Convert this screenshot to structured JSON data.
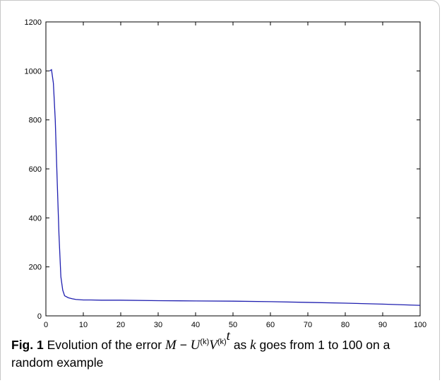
{
  "figure": {
    "label": "Fig. 1",
    "caption": {
      "prefix": "Evolution of the error ",
      "math_M": "M",
      "math_minus": " − ",
      "math_U": "U",
      "math_k1": "(k)",
      "math_V": "V",
      "math_k2": "(k)",
      "math_t": "t",
      "mid": " as ",
      "math_kvar": "k",
      "suffix": " goes from 1 to 100 on a random example"
    }
  },
  "colors": {
    "line": "#1f1fb0",
    "axis": "#000000",
    "frame": "#c7c7c7"
  },
  "chart_data": {
    "type": "line",
    "xlim": [
      0,
      100
    ],
    "ylim": [
      0,
      1200
    ],
    "xticks": [
      0,
      10,
      20,
      30,
      40,
      50,
      60,
      70,
      80,
      90,
      100
    ],
    "yticks": [
      0,
      200,
      400,
      600,
      800,
      1000,
      1200
    ],
    "grid": false,
    "series": [
      {
        "x": [
          1,
          1.5,
          2,
          2.5,
          3,
          3.5,
          4,
          4.5,
          5,
          6,
          7,
          8,
          9,
          10,
          12,
          15,
          20,
          30,
          40,
          50,
          60,
          70,
          80,
          90,
          100
        ],
        "y": [
          1000,
          1005,
          950,
          800,
          560,
          330,
          160,
          105,
          82,
          74,
          70,
          67,
          66,
          65,
          65,
          64,
          64,
          62,
          61,
          60,
          58,
          55,
          52,
          48,
          43
        ]
      }
    ]
  }
}
